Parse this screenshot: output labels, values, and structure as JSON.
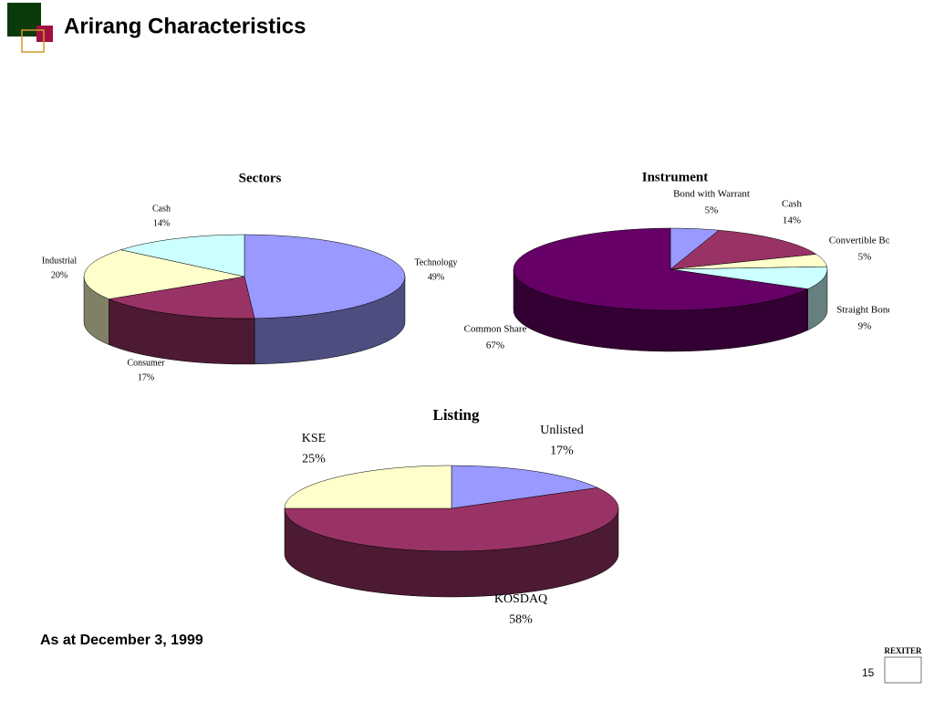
{
  "header": {
    "title": "Arirang Characteristics"
  },
  "footer": {
    "note": "As at December 3, 1999",
    "page": "15",
    "logo": "REXITER"
  },
  "chart_data": [
    {
      "type": "pie3d",
      "title": "Sectors",
      "categories": [
        "Technology",
        "Consumer",
        "Industrial",
        "Cash"
      ],
      "values": [
        49,
        17,
        20,
        14
      ],
      "value_labels": [
        "49%",
        "17%",
        "20%",
        "14%"
      ],
      "colors": [
        "#9999ff",
        "#993366",
        "#ffffcc",
        "#ccffff"
      ]
    },
    {
      "type": "pie3d",
      "title": "Instrument",
      "categories": [
        "Bond with Warrant",
        "Cash",
        "Convertible Bond",
        "Straight Bond",
        "Common Share"
      ],
      "values": [
        5,
        14,
        5,
        9,
        67
      ],
      "value_labels": [
        "5%",
        "14%",
        "5%",
        "9%",
        "67%"
      ],
      "colors": [
        "#9999ff",
        "#993366",
        "#ffffcc",
        "#ccffff",
        "#660066"
      ]
    },
    {
      "type": "pie3d",
      "title": "Listing",
      "categories": [
        "Unlisted",
        "KOSDAQ",
        "KSE"
      ],
      "values": [
        17,
        58,
        25
      ],
      "value_labels": [
        "17%",
        "58%",
        "25%"
      ],
      "colors": [
        "#9999ff",
        "#993366",
        "#ffffcc"
      ]
    }
  ]
}
